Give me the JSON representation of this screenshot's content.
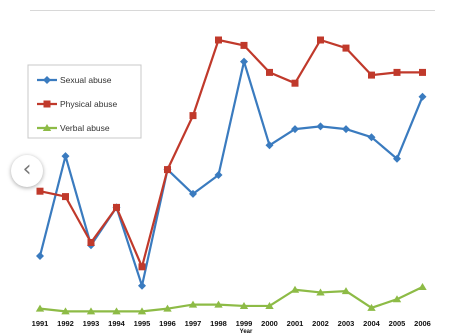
{
  "chart_data": {
    "type": "line",
    "xlabel": "Year",
    "ylabel": "",
    "ylim": [
      0,
      100
    ],
    "grid": false,
    "legend_position": "left",
    "x": [
      "1991",
      "1992",
      "1993",
      "1994",
      "1995",
      "1996",
      "1997",
      "1998",
      "1999",
      "2000",
      "2001",
      "2002",
      "2003",
      "2004",
      "2005",
      "2006"
    ],
    "series": [
      {
        "name": "Sexual abuse",
        "color": "#3a7bbf",
        "marker": "diamond",
        "values": [
          20,
          57,
          24,
          38,
          9,
          52,
          43,
          50,
          92,
          61,
          67,
          68,
          67,
          64,
          56,
          79
        ]
      },
      {
        "name": "Physical abuse",
        "color": "#c0392b",
        "marker": "square",
        "values": [
          44,
          42,
          25,
          38,
          16,
          52,
          72,
          100,
          98,
          88,
          84,
          100,
          97,
          87,
          88,
          88
        ]
      },
      {
        "name": "Verbal abuse",
        "color": "#8dbb46",
        "marker": "triangle",
        "values": [
          0.5,
          -0.5,
          -0.5,
          -0.5,
          -0.5,
          0.5,
          2,
          2,
          1.5,
          1.5,
          7.5,
          6.5,
          7,
          0.8,
          4,
          8.5
        ]
      }
    ]
  },
  "ui": {
    "prev_icon": "chevron-left-icon",
    "prev_glyph": "‹"
  }
}
